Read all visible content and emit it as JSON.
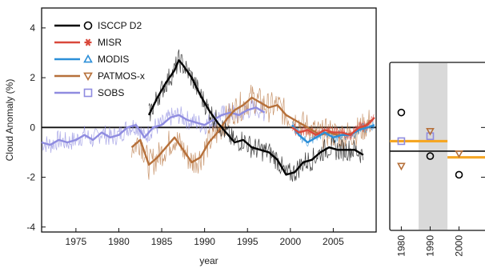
{
  "chart_data": [
    {
      "type": "line",
      "xlabel": "year",
      "ylabel": "Cloud Anomaly (%)",
      "xlim": [
        1971,
        2010
      ],
      "ylim": [
        -4.2,
        4.8
      ],
      "x_ticks": [
        "1975",
        "1980",
        "1985",
        "1990",
        "1995",
        "2000",
        "2005"
      ],
      "y_ticks": [
        "4",
        "2",
        "0",
        "-2",
        "-4"
      ],
      "grid": false,
      "legend_position": "top-left",
      "series": [
        {
          "name": "ISCCP D2",
          "color": "#000000",
          "marker": "○",
          "x": [
            1983.5,
            1984.5,
            1985.5,
            1986.5,
            1987.0,
            1987.5,
            1988.5,
            1989.5,
            1990.5,
            1991.5,
            1992.5,
            1993.5,
            1994.5,
            1995.5,
            1996.5,
            1997.5,
            1998.5,
            1999.5,
            2000.5,
            2001.5,
            2002.5,
            2003.5,
            2004.5,
            2005.5,
            2006.5,
            2007.5,
            2008.5
          ],
          "y": [
            0.5,
            1.2,
            1.8,
            2.3,
            2.7,
            2.5,
            2.0,
            1.3,
            0.7,
            0.2,
            -0.2,
            -0.6,
            -0.5,
            -0.8,
            -0.9,
            -1.0,
            -1.3,
            -1.9,
            -1.8,
            -1.4,
            -1.3,
            -1.0,
            -0.8,
            -0.9,
            -0.9,
            -0.9,
            -1.1
          ]
        },
        {
          "name": "MISR",
          "color": "#d9483b",
          "marker": "✱",
          "x": [
            2000.2,
            2001,
            2002,
            2003,
            2004,
            2005,
            2006,
            2007,
            2008,
            2009,
            2009.8
          ],
          "y": [
            0.0,
            -0.2,
            -0.1,
            -0.3,
            -0.1,
            -0.2,
            -0.2,
            -0.3,
            0.0,
            0.1,
            0.4
          ]
        },
        {
          "name": "MODIS",
          "color": "#2c8fd8",
          "marker": "△",
          "x": [
            2000.2,
            2001,
            2002,
            2003,
            2004,
            2005,
            2006,
            2007,
            2008,
            2009,
            2009.8
          ],
          "y": [
            0.1,
            -0.3,
            -0.6,
            -0.4,
            -0.2,
            -0.4,
            -0.3,
            -0.3,
            -0.1,
            0.0,
            0.1
          ]
        },
        {
          "name": "PATMOS-x",
          "color": "#b6703a",
          "marker": "▽",
          "x": [
            1981.5,
            1982.5,
            1983.5,
            1984.5,
            1985.5,
            1986.5,
            1987.5,
            1988.5,
            1989.5,
            1990.5,
            1991.5,
            1992.5,
            1993.5,
            1994.5,
            1995.5,
            1996.5,
            1997.5,
            1998.5,
            1999.5,
            2000.5,
            2001.5,
            2002.5,
            2003.5,
            2004.5,
            2005.5,
            2006.5,
            2007.5,
            2008.5,
            2009.5
          ],
          "y": [
            -0.8,
            -0.5,
            -1.5,
            -1.2,
            -0.8,
            -0.4,
            -0.9,
            -1.4,
            -1.2,
            -0.6,
            -0.2,
            0.3,
            0.7,
            0.9,
            1.2,
            1.0,
            0.8,
            0.9,
            0.5,
            0.3,
            0.1,
            -0.1,
            -0.3,
            -0.2,
            -0.3,
            -0.3,
            -0.2,
            0.0,
            0.3
          ]
        },
        {
          "name": "SOBS",
          "color": "#8f8ce0",
          "marker": "□",
          "x": [
            1971,
            1972,
            1973,
            1974,
            1975,
            1976,
            1977,
            1978,
            1979,
            1980,
            1981,
            1982,
            1983,
            1984,
            1985,
            1986,
            1987,
            1988,
            1989,
            1990,
            1991,
            1992,
            1993,
            1994,
            1995,
            1996,
            1997
          ],
          "y": [
            -0.6,
            -0.7,
            -0.5,
            -0.6,
            -0.5,
            -0.3,
            -0.5,
            -0.2,
            -0.4,
            -0.3,
            0.0,
            0.1,
            -0.4,
            0.0,
            0.1,
            0.4,
            0.5,
            0.3,
            0.2,
            0.1,
            0.3,
            0.5,
            0.6,
            0.5,
            0.7,
            0.8,
            0.6
          ]
        }
      ]
    },
    {
      "type": "scatter",
      "x_ticks": [
        "1980",
        "1990",
        "2000"
      ],
      "shaded_range": [
        1986,
        1996
      ],
      "points": [
        {
          "decade": 1980,
          "marker": "circle",
          "value": 0.6,
          "color": "#000000"
        },
        {
          "decade": 1980,
          "marker": "square",
          "value": -0.55,
          "color": "#8f8ce0"
        },
        {
          "decade": 1980,
          "marker": "triangle-down",
          "value": -1.55,
          "color": "#b6703a"
        },
        {
          "decade": 1990,
          "marker": "circle",
          "value": -1.15,
          "color": "#000000"
        },
        {
          "decade": 1990,
          "marker": "square",
          "value": -0.35,
          "color": "#8f8ce0"
        },
        {
          "decade": 1990,
          "marker": "triangle-down",
          "value": -0.15,
          "color": "#b6703a"
        },
        {
          "decade": 2000,
          "marker": "circle",
          "value": -1.9,
          "color": "#000000"
        },
        {
          "decade": 2000,
          "marker": "triangle-down",
          "value": -1.05,
          "color": "#b6703a"
        }
      ],
      "reference_lines": [
        {
          "color": "#111111",
          "value": -0.95
        },
        {
          "color": "#f5a623",
          "value": -0.55,
          "range": [
            1976,
            1996
          ]
        },
        {
          "color": "#f5a623",
          "value": -1.2,
          "range": [
            1996,
            2010
          ]
        }
      ]
    }
  ]
}
